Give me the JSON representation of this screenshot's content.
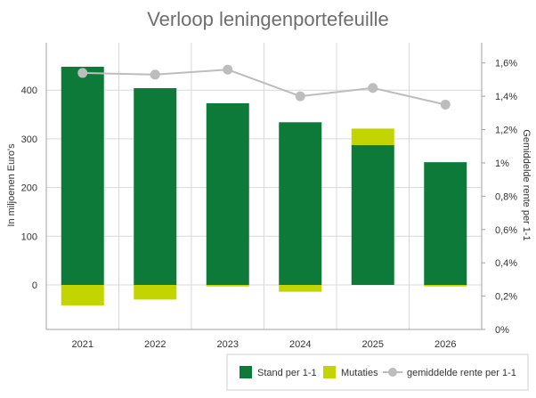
{
  "chart_data": {
    "type": "bar",
    "title": "Verloop leningenportefeuille",
    "categories": [
      "2021",
      "2022",
      "2023",
      "2024",
      "2025",
      "2026"
    ],
    "ylabel": "In miljoenen Euro's",
    "y2label": "Gemiddelde rente per 1-1",
    "ylim": [
      -90,
      500
    ],
    "yticks": [
      "0",
      "100",
      "200",
      "300",
      "400"
    ],
    "y2lim": [
      0,
      1.7
    ],
    "y2ticks": [
      "0%",
      "0,2%",
      "0,4%",
      "0,6%",
      "0,8%",
      "1%",
      "1,2%",
      "1,4%",
      "1,6%"
    ],
    "series": [
      {
        "name": "Stand per 1-1",
        "type": "bar",
        "color": "#0e7a3a",
        "values": [
          448,
          404,
          373,
          334,
          287,
          252
        ]
      },
      {
        "name": "Mutaties",
        "type": "bar",
        "color": "#c2d500",
        "values": [
          -42,
          -30,
          -3,
          -14,
          34,
          -3
        ]
      },
      {
        "name": "gemiddelde rente per 1-1",
        "type": "line",
        "axis": "right",
        "color": "#bdbdbd",
        "values": [
          1.54,
          1.53,
          1.56,
          1.4,
          1.45,
          1.35
        ]
      }
    ],
    "legend": "bottom-right",
    "grid": true
  }
}
